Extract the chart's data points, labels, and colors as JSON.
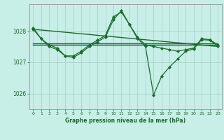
{
  "title": "Graphe pression niveau de la mer (hPa)",
  "bg_color": "#c8eee8",
  "grid_color": "#a0ccc8",
  "line_color": "#1a6b2a",
  "xlim": [
    -0.5,
    23.5
  ],
  "ylim": [
    1025.5,
    1028.85
  ],
  "yticks": [
    1026,
    1027,
    1028
  ],
  "xticks": [
    0,
    1,
    2,
    3,
    4,
    5,
    6,
    7,
    8,
    9,
    10,
    11,
    12,
    13,
    14,
    15,
    16,
    17,
    18,
    19,
    20,
    21,
    22,
    23
  ],
  "series": [
    {
      "x": [
        0,
        1,
        2,
        3,
        4,
        5,
        6,
        7,
        8,
        9,
        10,
        11,
        12,
        13,
        14,
        15,
        16,
        17,
        18,
        19,
        20,
        21,
        22,
        23
      ],
      "y": [
        1027.6,
        1027.6,
        1027.6,
        1027.6,
        1027.6,
        1027.6,
        1027.6,
        1027.6,
        1027.6,
        1027.6,
        1027.6,
        1027.6,
        1027.6,
        1027.6,
        1027.6,
        1027.6,
        1027.6,
        1027.6,
        1027.6,
        1027.6,
        1027.6,
        1027.6,
        1027.6,
        1027.6
      ],
      "marker": null,
      "lw": 1.0
    },
    {
      "x": [
        0,
        1,
        2,
        3,
        4,
        5,
        6,
        7,
        8,
        9,
        10,
        11,
        12,
        13,
        14,
        15,
        16,
        17,
        18,
        19,
        20,
        21,
        22,
        23
      ],
      "y": [
        1027.55,
        1027.55,
        1027.55,
        1027.55,
        1027.55,
        1027.55,
        1027.55,
        1027.55,
        1027.55,
        1027.55,
        1027.55,
        1027.55,
        1027.55,
        1027.55,
        1027.55,
        1027.55,
        1027.55,
        1027.55,
        1027.55,
        1027.55,
        1027.55,
        1027.55,
        1027.55,
        1027.55
      ],
      "marker": null,
      "lw": 1.0
    },
    {
      "x": [
        0,
        23
      ],
      "y": [
        1028.05,
        1027.5
      ],
      "marker": null,
      "lw": 1.0
    },
    {
      "x": [
        0,
        1,
        2,
        3,
        4,
        5,
        6,
        7,
        8,
        9,
        10,
        11,
        12,
        13,
        14,
        15,
        16,
        17,
        18,
        19,
        20,
        21,
        22,
        23
      ],
      "y": [
        1028.05,
        1027.75,
        1027.55,
        1027.45,
        1027.2,
        1027.2,
        1027.35,
        1027.55,
        1027.7,
        1027.85,
        1028.45,
        1028.6,
        1028.2,
        1027.8,
        1027.55,
        1027.5,
        1027.45,
        1027.4,
        1027.35,
        1027.4,
        1027.45,
        1027.75,
        1027.72,
        1027.55
      ],
      "marker": "D",
      "ms": 2.0,
      "lw": 0.9
    },
    {
      "x": [
        0,
        1,
        2,
        3,
        4,
        5,
        6,
        7,
        8,
        9,
        10,
        11,
        12,
        13,
        14,
        15,
        16,
        17,
        18,
        19,
        20,
        21,
        22,
        23
      ],
      "y": [
        1028.1,
        1027.75,
        1027.5,
        1027.4,
        1027.2,
        1027.15,
        1027.3,
        1027.5,
        1027.65,
        1027.8,
        1028.35,
        1028.65,
        1028.2,
        1027.75,
        1027.5,
        1025.95,
        1026.55,
        1026.85,
        1027.1,
        1027.35,
        1027.42,
        1027.72,
        1027.7,
        1027.52
      ],
      "marker": "D",
      "ms": 2.0,
      "lw": 0.9
    }
  ]
}
